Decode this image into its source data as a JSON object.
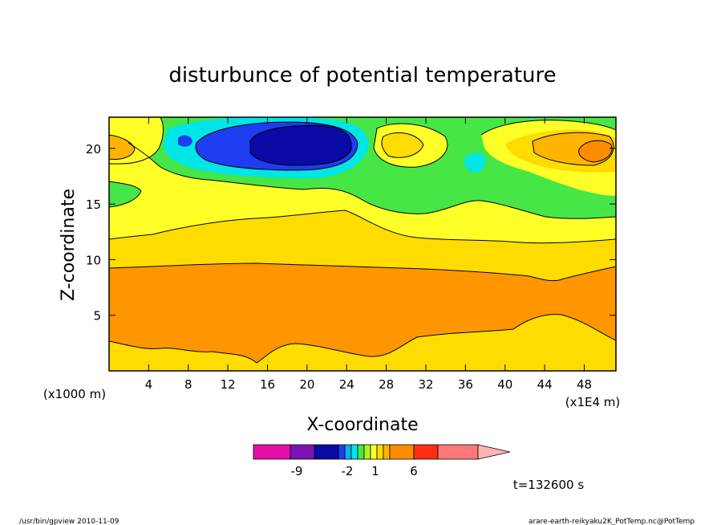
{
  "chart_data": {
    "type": "heatmap",
    "title": "disturbunce of potential temperature",
    "xlabel": "X-coordinate",
    "ylabel": "Z-coordinate",
    "x_unit": "(x1E4 m)",
    "y_unit": "(x1000 m)",
    "x_ticks": [
      4,
      8,
      12,
      16,
      20,
      24,
      28,
      32,
      36,
      40,
      44,
      48
    ],
    "y_ticks": [
      5,
      10,
      15,
      20
    ],
    "xlim": [
      0,
      51.2
    ],
    "ylim": [
      0,
      22.8
    ],
    "contour_levels": [
      -10,
      -9,
      -6,
      -3,
      -2,
      -1,
      -0.5,
      0,
      0.5,
      1,
      1.5,
      2,
      4,
      6,
      8
    ],
    "colorbar_labels": [
      "-9",
      "-2",
      "1",
      "6"
    ],
    "colorbar_colors": [
      "#e60ea6",
      "#7d12b3",
      "#0a0aa6",
      "#1e3cf0",
      "#00b4f0",
      "#00e6e6",
      "#46e646",
      "#b4f01e",
      "#ffff28",
      "#ffdc00",
      "#ffb400",
      "#ff8c00",
      "#ff2d14",
      "#ff7878",
      "#ffb4b4"
    ],
    "fields": [
      {
        "level": "below -6",
        "color": "#0a0aa6",
        "region": "upper left-centre, x ≈ 16–24, z ≈ 20–22"
      },
      {
        "level": "-6 to -3",
        "color": "#1e3cf0",
        "region": "upper left, x ≈ 8–25, z ≈ 19–22"
      },
      {
        "level": "-3 to 0",
        "color": "#00e6e6",
        "region": "x ≈ 6–26 and x ≈ 36, z ≈ 18–22"
      },
      {
        "level": "0 to 0.5",
        "color": "#46e646",
        "region": "upper band, z ≈ 15–22"
      },
      {
        "level": "0.5 to 1",
        "color": "#ffff28",
        "region": "middle band, z ≈ 12–17"
      },
      {
        "level": "1 to 2",
        "color": "#ffdc00",
        "region": "z ≈ 9–12"
      },
      {
        "level": "2 to 4",
        "color": "#ff8c00",
        "region": "lower band, z ≈ 2–9"
      },
      {
        "level": "highest",
        "color": "#ff8c00",
        "region": "upper right core, x ≈ 45–50, z ≈ 19.5–21"
      }
    ]
  },
  "time_label": "t=132600 s",
  "footer_left": "/usr/bin/gpview  2010-11-09",
  "footer_right": "arare-earth-reikyaku2K_PotTemp.nc@PotTemp",
  "colors": {
    "background": "#ffffff",
    "axis": "#000000"
  }
}
